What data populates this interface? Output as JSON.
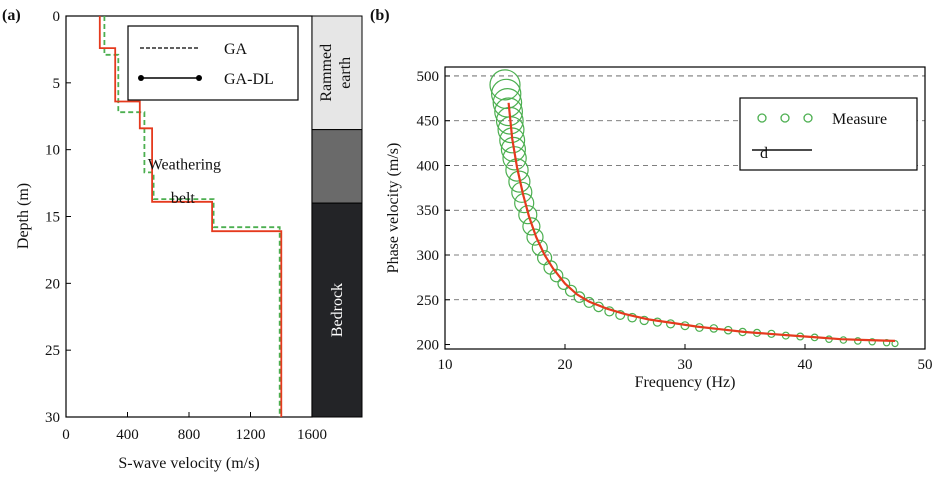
{
  "chart_data": [
    {
      "panel_label": "(a)",
      "type": "line",
      "xlabel": "S-wave velocity (m/s)",
      "ylabel": "Depth (m)",
      "xlim": [
        0,
        1600
      ],
      "ylim": [
        30,
        0
      ],
      "y_inverted": true,
      "xticks": [
        0,
        400,
        800,
        1200,
        1600
      ],
      "yticks": [
        0,
        5,
        10,
        15,
        20,
        25,
        30
      ],
      "legend": {
        "position": "top-right",
        "entries": [
          "GA",
          "GA-DL"
        ]
      },
      "series": [
        {
          "name": "GA",
          "style": "dashed",
          "color": "#4caf50",
          "points": [
            [
              250,
              0
            ],
            [
              250,
              2.9
            ],
            [
              340,
              2.9
            ],
            [
              340,
              7.2
            ],
            [
              510,
              7.2
            ],
            [
              510,
              11.7
            ],
            [
              570,
              11.7
            ],
            [
              570,
              13.7
            ],
            [
              960,
              13.7
            ],
            [
              960,
              15.8
            ],
            [
              1390,
              15.8
            ],
            [
              1390,
              30
            ]
          ]
        },
        {
          "name": "GA-DL",
          "style": "solid",
          "color": "#e53a1e",
          "points": [
            [
              220,
              0
            ],
            [
              220,
              2.4
            ],
            [
              320,
              2.4
            ],
            [
              320,
              6.4
            ],
            [
              480,
              6.4
            ],
            [
              480,
              8.4
            ],
            [
              560,
              8.4
            ],
            [
              560,
              13.9
            ],
            [
              950,
              13.9
            ],
            [
              950,
              16.1
            ],
            [
              1400,
              16.1
            ],
            [
              1400,
              30
            ]
          ]
        }
      ],
      "annotations": [
        {
          "text": "Weathering",
          "x": 770,
          "y": 11.5
        },
        {
          "text": "belt",
          "x": 760,
          "y": 14.0
        }
      ],
      "strata": [
        {
          "label": "Rammed earth",
          "top": 0,
          "bottom": 8.5,
          "color": "#e6e6e6"
        },
        {
          "label": "",
          "top": 8.5,
          "bottom": 14,
          "color": "#6a6a6a"
        },
        {
          "label": "Bedrock",
          "top": 14,
          "bottom": 30,
          "color": "#232427"
        }
      ]
    },
    {
      "panel_label": "(b)",
      "type": "scatter",
      "xlabel": "Frequency (Hz)",
      "ylabel": "Phase velocity (m/s)",
      "xlim": [
        10,
        50
      ],
      "ylim": [
        195,
        510
      ],
      "xticks": [
        10,
        20,
        30,
        40,
        50
      ],
      "yticks": [
        200,
        250,
        300,
        350,
        400,
        450,
        500
      ],
      "grid": "horizontal-dashed",
      "legend": {
        "position": "top-right",
        "entries": [
          "Measure",
          "d"
        ]
      },
      "series": [
        {
          "name": "Measure",
          "style": "circles",
          "color": "#4caf50",
          "points": [
            [
              15.0,
              490
            ],
            [
              15.1,
              480
            ],
            [
              15.2,
              470
            ],
            [
              15.3,
              460
            ],
            [
              15.4,
              450
            ],
            [
              15.5,
              440
            ],
            [
              15.6,
              428
            ],
            [
              15.7,
              418
            ],
            [
              15.8,
              408
            ],
            [
              16.0,
              395
            ],
            [
              16.2,
              382
            ],
            [
              16.4,
              370
            ],
            [
              16.6,
              358
            ],
            [
              16.9,
              345
            ],
            [
              17.2,
              332
            ],
            [
              17.5,
              320
            ],
            [
              17.9,
              308
            ],
            [
              18.3,
              297
            ],
            [
              18.8,
              286
            ],
            [
              19.3,
              277
            ],
            [
              19.9,
              268
            ],
            [
              20.5,
              260
            ],
            [
              21.2,
              253
            ],
            [
              22.0,
              247
            ],
            [
              22.8,
              242
            ],
            [
              23.7,
              237
            ],
            [
              24.6,
              233
            ],
            [
              25.6,
              230
            ],
            [
              26.6,
              227
            ],
            [
              27.7,
              225
            ],
            [
              28.8,
              223
            ],
            [
              30.0,
              221
            ],
            [
              31.2,
              219
            ],
            [
              32.4,
              218
            ],
            [
              33.6,
              216
            ],
            [
              34.8,
              214
            ],
            [
              36.0,
              213
            ],
            [
              37.2,
              212
            ],
            [
              38.4,
              210
            ],
            [
              39.6,
              209
            ],
            [
              40.8,
              208
            ],
            [
              42.0,
              206
            ],
            [
              43.2,
              205
            ],
            [
              44.4,
              204
            ],
            [
              45.6,
              203
            ],
            [
              46.8,
              202
            ],
            [
              47.5,
              201
            ]
          ]
        },
        {
          "name": "d",
          "style": "solid",
          "color": "#e53a1e",
          "points": [
            [
              15.3,
              470
            ],
            [
              15.6,
              430
            ],
            [
              16.0,
              398
            ],
            [
              16.5,
              368
            ],
            [
              17.0,
              343
            ],
            [
              17.6,
              320
            ],
            [
              18.3,
              300
            ],
            [
              19.0,
              285
            ],
            [
              20.0,
              268
            ],
            [
              21.0,
              256
            ],
            [
              22.0,
              248
            ],
            [
              23.5,
              240
            ],
            [
              25.0,
              234
            ],
            [
              27.0,
              228
            ],
            [
              29.0,
              224
            ],
            [
              31.0,
              220
            ],
            [
              33.0,
              217
            ],
            [
              35.0,
              214
            ],
            [
              37.0,
              212
            ],
            [
              39.0,
              210
            ],
            [
              41.0,
              208
            ],
            [
              43.0,
              206
            ],
            [
              45.0,
              205
            ],
            [
              47.5,
              204
            ]
          ]
        }
      ]
    }
  ]
}
